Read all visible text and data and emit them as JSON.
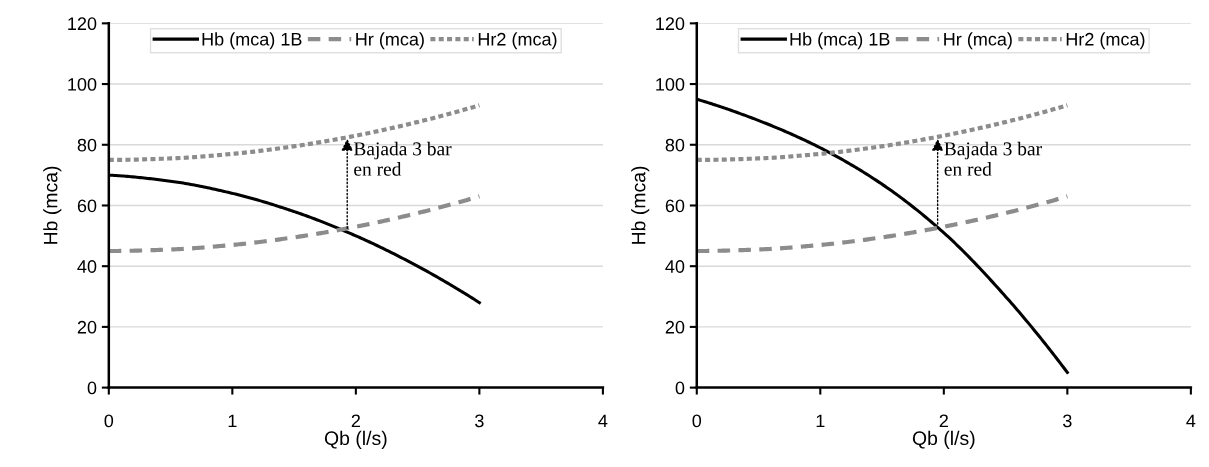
{
  "chart_data": [
    {
      "type": "line",
      "xlabel": "Qb (l/s)",
      "ylabel": "Hb (mca)",
      "xlim": [
        0,
        4
      ],
      "xticks": [
        0,
        1,
        2,
        3,
        4
      ],
      "ylim": [
        0,
        120
      ],
      "yticks": [
        0,
        20,
        40,
        60,
        80,
        100,
        120
      ],
      "grid": "y",
      "legend": "top",
      "marker": "none",
      "x": [
        0,
        0.5,
        1,
        1.5,
        2,
        2.5,
        3
      ],
      "series": [
        {
          "name": "Hb (mca) 1B",
          "color": "#000000",
          "line_style": "solid",
          "values": [
            70,
            68,
            64,
            58,
            50,
            40,
            28
          ]
        },
        {
          "name": "Hr (mca)",
          "color": "#8c8c8c",
          "line_style": "dashed",
          "values": [
            45,
            45.5,
            47,
            49.5,
            53,
            57.5,
            63
          ]
        },
        {
          "name": "Hr2 (mca)",
          "color": "#8c8c8c",
          "line_style": "dotted",
          "values": [
            75,
            75.5,
            77,
            79.5,
            83,
            87.5,
            93
          ]
        }
      ],
      "annotations": [
        {
          "text": "Bajada 3 bar\nen red",
          "x": 1.93,
          "y": 82
        }
      ]
    },
    {
      "type": "line",
      "xlabel": "Qb (l/s)",
      "ylabel": "Hb (mca)",
      "xlim": [
        0,
        4
      ],
      "xticks": [
        0,
        1,
        2,
        3,
        4
      ],
      "ylim": [
        0,
        120
      ],
      "yticks": [
        0,
        20,
        40,
        60,
        80,
        100,
        120
      ],
      "grid": "y",
      "legend": "top",
      "marker": "none",
      "x": [
        0,
        0.5,
        1,
        1.5,
        2,
        2.5,
        3
      ],
      "series": [
        {
          "name": "Hb (mca) 1B",
          "color": "#000000",
          "line_style": "solid",
          "values": [
            95,
            88,
            79,
            67,
            51,
            30,
            5
          ]
        },
        {
          "name": "Hr (mca)",
          "color": "#8c8c8c",
          "line_style": "dashed",
          "values": [
            45,
            45.5,
            47,
            49.5,
            53,
            57.5,
            63
          ]
        },
        {
          "name": "Hr2 (mca)",
          "color": "#8c8c8c",
          "line_style": "dotted",
          "values": [
            75,
            75.5,
            77,
            79.5,
            83,
            87.5,
            93
          ]
        }
      ],
      "annotations": [
        {
          "text": "Bajada 3 bar\nen red",
          "x": 1.95,
          "y": 82
        }
      ]
    }
  ]
}
